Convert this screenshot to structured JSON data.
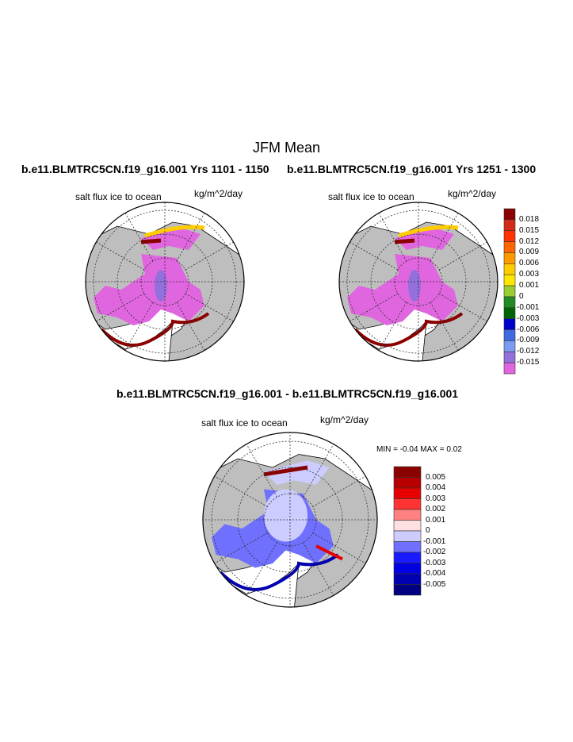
{
  "figure": {
    "title": "JFM Mean",
    "panels": [
      {
        "title": "b.e11.BLMTRC5CN.f19_g16.001  Yrs 1101 - 1150",
        "left_label": "salt flux ice to ocean",
        "units": "kg/m^2/day"
      },
      {
        "title": "b.e11.BLMTRC5CN.f19_g16.001  Yrs 1251 - 1300",
        "left_label": "salt flux ice to ocean",
        "units": "kg/m^2/day"
      }
    ],
    "diff_panel": {
      "title": "b.e11.BLMTRC5CN.f19_g16.001 - b.e11.BLMTRC5CN.f19_g16.001",
      "left_label": "salt flux ice to ocean",
      "units": "kg/m^2/day",
      "minmax": "MIN =  -0.04 MAX =   0.02"
    },
    "colorbar_top": {
      "labels": [
        "0.018",
        "0.015",
        "0.012",
        "0.009",
        "0.006",
        "0.003",
        "0.001",
        "0",
        "-0.001",
        "-0.003",
        "-0.006",
        "-0.009",
        "-0.012",
        "-0.015"
      ],
      "colors": [
        "#8b0000",
        "#d42a1a",
        "#ff3300",
        "#ff6600",
        "#ff9900",
        "#ffcc00",
        "#ffe600",
        "#9acd32",
        "#228b22",
        "#006400",
        "#0000cd",
        "#4169e1",
        "#7b9cf0",
        "#9370db",
        "#e066e0"
      ]
    },
    "colorbar_diff": {
      "labels": [
        "0.005",
        "0.004",
        "0.003",
        "0.002",
        "0.001",
        "0",
        "-0.001",
        "-0.002",
        "-0.003",
        "-0.004",
        "-0.005"
      ],
      "colors": [
        "#8b0000",
        "#b80000",
        "#e60000",
        "#ff3333",
        "#ff8080",
        "#ffe0e0",
        "#ccccff",
        "#7070ff",
        "#1a1aff",
        "#0000e0",
        "#0000b0",
        "#000080"
      ]
    },
    "colors": {
      "land": "#bebebe",
      "ice_flux_negative": "#e066e0",
      "ocean": "#ffffff"
    }
  }
}
